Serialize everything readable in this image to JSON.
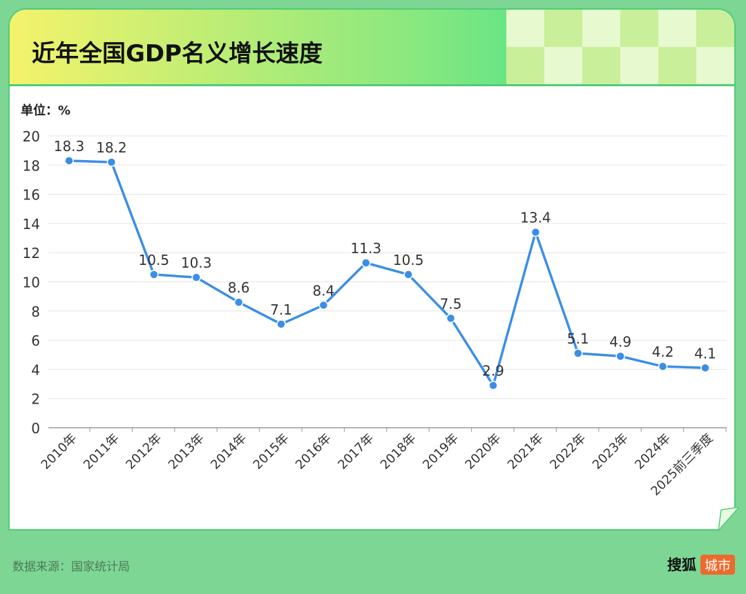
{
  "header": {
    "title": "近年全国GDP名义增长速度"
  },
  "unit_label": "单位：%",
  "footer": {
    "source": "数据来源：国家统计局",
    "brand_name": "搜狐",
    "brand_tag": "城市"
  },
  "colors": {
    "line": "#3b8ee6",
    "background": "#7dd694",
    "header_start": "#f4f36a",
    "header_end": "#66e585",
    "brand_tag": "#ed6a2d"
  },
  "chart_data": {
    "type": "line",
    "categories": [
      "2010年",
      "2011年",
      "2012年",
      "2013年",
      "2014年",
      "2015年",
      "2016年",
      "2017年",
      "2018年",
      "2019年",
      "2020年",
      "2021年",
      "2022年",
      "2023年",
      "2024年",
      "2025前三季度"
    ],
    "values": [
      18.3,
      18.2,
      10.5,
      10.3,
      8.6,
      7.1,
      8.4,
      11.3,
      10.5,
      7.5,
      2.9,
      13.4,
      5.1,
      4.9,
      4.2,
      4.1
    ],
    "ylim": [
      0,
      20
    ],
    "yticks": [
      0,
      2,
      4,
      6,
      8,
      10,
      12,
      14,
      16,
      18,
      20
    ],
    "grid": true,
    "data_labels": true
  }
}
